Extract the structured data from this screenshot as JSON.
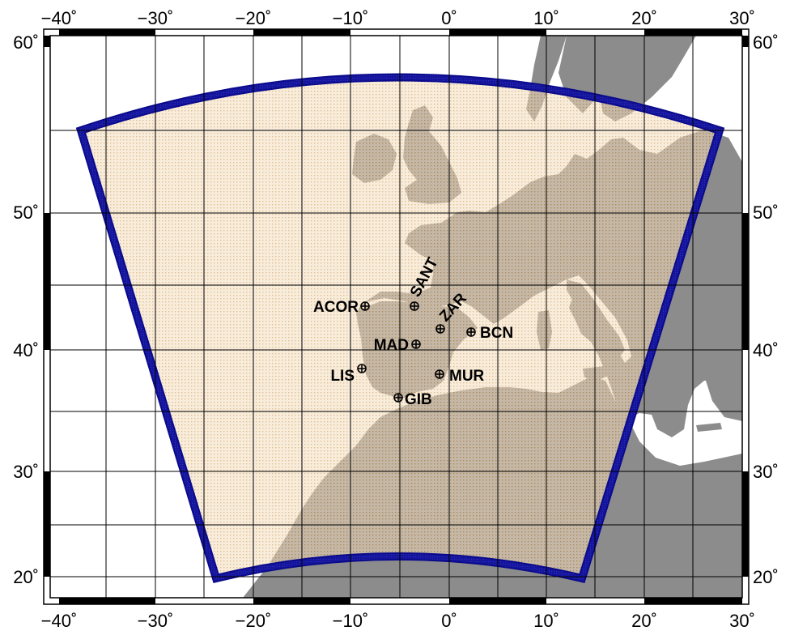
{
  "map": {
    "lon_ticks": [
      "−40˚",
      "−30˚",
      "−20˚",
      "−10˚",
      "0˚",
      "10˚",
      "20˚",
      "30˚"
    ],
    "lat_ticks": [
      "60˚",
      "50˚",
      "40˚",
      "30˚",
      "20˚"
    ],
    "colors": {
      "land": "#8c8c8c",
      "ocean": "#ffffff",
      "domain_fill": "#f3dcbd",
      "domain_grid": "#c98a3a",
      "domain_border": "#0a0a8c",
      "frame": "#000000",
      "graticule": "#000000"
    },
    "stations": [
      {
        "code": "ACOR",
        "icon": "crosshair-circle-icon"
      },
      {
        "code": "SANT",
        "icon": "crosshair-circle-icon"
      },
      {
        "code": "ZAR",
        "icon": "crosshair-circle-icon"
      },
      {
        "code": "BCN",
        "icon": "crosshair-circle-icon"
      },
      {
        "code": "MAD",
        "icon": "crosshair-circle-icon"
      },
      {
        "code": "LIS",
        "icon": "crosshair-circle-icon"
      },
      {
        "code": "MUR",
        "icon": "crosshair-circle-icon"
      },
      {
        "code": "GIB",
        "icon": "crosshair-circle-icon"
      }
    ]
  }
}
